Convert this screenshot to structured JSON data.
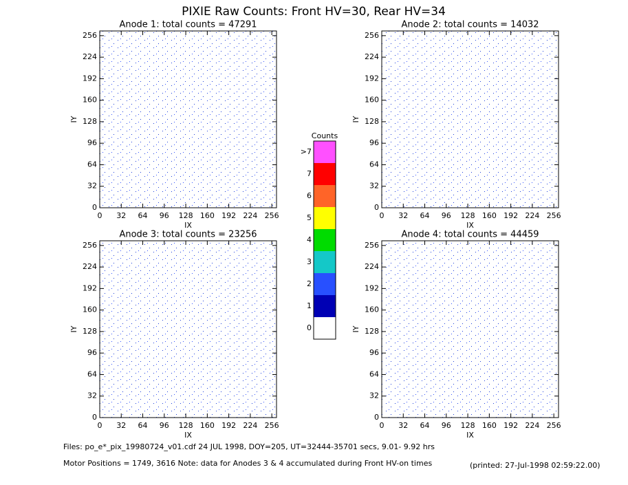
{
  "title": "PIXIE Raw Counts:  Front HV=30, Rear HV=34",
  "chart_data": [
    {
      "type": "heatmap",
      "title": "Anode 1: total counts = 47291",
      "x_label": "IX",
      "y_label": "IY",
      "xlim": [
        0,
        263
      ],
      "ylim": [
        0,
        263
      ],
      "xticks": [
        0,
        32,
        64,
        96,
        128,
        160,
        192,
        224,
        256
      ],
      "yticks": [
        0,
        32,
        64,
        96,
        128,
        160,
        192,
        224,
        256
      ]
    },
    {
      "type": "heatmap",
      "title": "Anode 2: total counts = 14032",
      "x_label": "IX",
      "y_label": "IY",
      "xlim": [
        0,
        263
      ],
      "ylim": [
        0,
        263
      ],
      "xticks": [
        0,
        32,
        64,
        96,
        128,
        160,
        192,
        224,
        256
      ],
      "yticks": [
        0,
        32,
        64,
        96,
        128,
        160,
        192,
        224,
        256
      ]
    },
    {
      "type": "heatmap",
      "title": "Anode 3: total counts = 23256",
      "x_label": "IX",
      "y_label": "IY",
      "xlim": [
        0,
        263
      ],
      "ylim": [
        0,
        263
      ],
      "xticks": [
        0,
        32,
        64,
        96,
        128,
        160,
        192,
        224,
        256
      ],
      "yticks": [
        0,
        32,
        64,
        96,
        128,
        160,
        192,
        224,
        256
      ]
    },
    {
      "type": "heatmap",
      "title": "Anode 4: total counts = 44459",
      "x_label": "IX",
      "y_label": "IY",
      "xlim": [
        0,
        263
      ],
      "ylim": [
        0,
        263
      ],
      "xticks": [
        0,
        32,
        64,
        96,
        128,
        160,
        192,
        224,
        256
      ],
      "yticks": [
        0,
        32,
        64,
        96,
        128,
        160,
        192,
        224,
        256
      ]
    }
  ],
  "colorbar": {
    "title": "Counts",
    "ticks": [
      0,
      1,
      2,
      3,
      4,
      5,
      6,
      7,
      {
        "value": 8,
        "label": ">7"
      }
    ],
    "colors": [
      "#ffffff",
      "#0000b4",
      "#2850ff",
      "#14c8c8",
      "#00dc00",
      "#ffff00",
      "#ff6428",
      "#ff0000",
      "#ff50ff"
    ]
  },
  "footer": {
    "files": "Files: po_e*_pix_19980724_v01.cdf   24 JUL 1998, DOY=205, UT=32444-35701 secs,  9.01- 9.92 hrs",
    "motor": "Motor Positions = 1749, 3616   Note: data for Anodes 3 & 4 accumulated during Front HV-on times",
    "printed": "(printed: 27-Jul-1998 02:59:22.00)"
  }
}
